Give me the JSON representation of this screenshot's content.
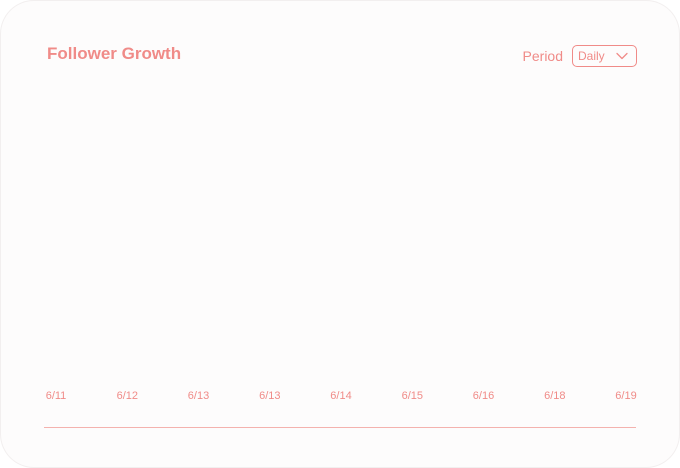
{
  "title": "Follower Growth",
  "period": {
    "label": "Period",
    "value": "Daily"
  },
  "icons": {
    "dropdown": "chevron-down-icon"
  },
  "colors": {
    "accent": "#f08b88",
    "card_background": "#fdfcfc",
    "baseline": "#f4b2ae"
  },
  "chart_data": {
    "type": "line",
    "title": "Follower Growth",
    "x": [
      "6/11",
      "6/12",
      "6/13",
      "6/13",
      "6/14",
      "6/15",
      "6/16",
      "6/18",
      "6/19"
    ],
    "series": [],
    "grid": false
  }
}
